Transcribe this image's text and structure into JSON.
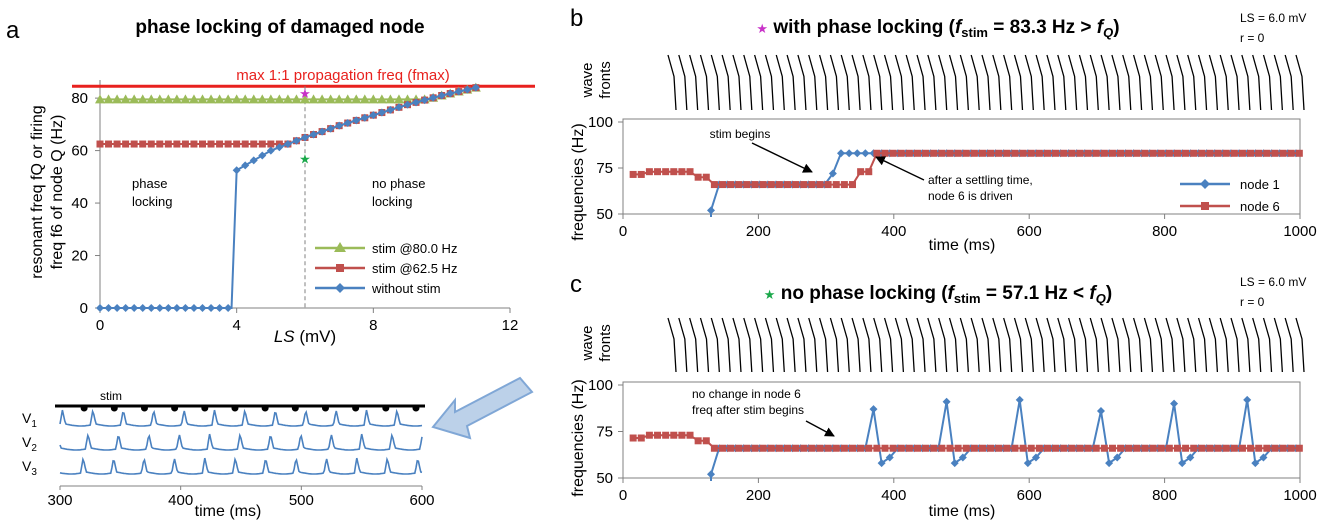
{
  "colors": {
    "blue": "#4a81c0",
    "red": "#c0504d",
    "green": "#9bbb59",
    "fmax_red": "#e8211e",
    "magenta": "#c832c8",
    "star_green": "#1aa84a",
    "arrow_fill": "#b9cfe8",
    "arrow_stroke": "#7aa3d4",
    "axis": "#808080"
  },
  "icons": {
    "magenta_star": "★",
    "green_star": "★",
    "wavefront_glyph": "\\",
    "big_arrow": "arrow-left"
  },
  "panel_a": {
    "letter": "a",
    "title": "phase locking of damaged node",
    "ylabel_line1": "resonant freq fQ or firing",
    "ylabel_line2": "freq f6 of node Q (Hz)",
    "xlabel_pre": "LS",
    "xlabel_unit": "(mV)",
    "fmax_label": "max 1:1 propagation freq (fmax)",
    "annot_phase_locking": [
      "phase",
      "locking"
    ],
    "annot_no_phase_locking": [
      "no phase",
      "locking"
    ],
    "legend": [
      "stim @80.0 Hz",
      "stim @62.5 Hz",
      "without stim"
    ]
  },
  "panel_a_inset": {
    "stim_label": "stim",
    "traces": [
      "V",
      "V",
      "V"
    ],
    "trace_subs": [
      "1",
      "2",
      "3"
    ],
    "xlabel": "time (ms)"
  },
  "panel_b": {
    "letter": "b",
    "star": "★",
    "title_prefix": "with phase locking (",
    "title_f": "f",
    "title_sub": "stim",
    "title_mid": " = 83.3 Hz > ",
    "title_fq": "f",
    "title_q": "Q",
    "title_end": ")",
    "params": [
      "LS = 6.0 mV",
      "r = 0"
    ],
    "wave_label": [
      "wave",
      "fronts"
    ],
    "ylabel": "frequencies (Hz)",
    "xlabel": "time (ms)",
    "annot_stim_begins": "stim begins",
    "annot_settle": [
      "after a settling time,",
      "node 6 is driven"
    ],
    "legend": [
      "node 1",
      "node 6"
    ]
  },
  "panel_c": {
    "letter": "c",
    "star": "★",
    "title_prefix": "no phase locking (",
    "title_f": "f",
    "title_sub": "stim",
    "title_mid": " = 57.1 Hz < ",
    "title_fq": "f",
    "title_q": "Q",
    "title_end": ")",
    "params": [
      "LS = 6.0 mV",
      "r = 0"
    ],
    "wave_label": [
      "wave",
      "fronts"
    ],
    "ylabel": "frequencies (Hz)",
    "xlabel": "time (ms)",
    "annot": [
      "no change in node 6",
      "freq after stim begins"
    ]
  },
  "chart_data": [
    {
      "id": "a",
      "type": "line",
      "title": "phase locking of damaged node",
      "xlabel": "LS (mV)",
      "ylabel": "resonant freq fQ or firing freq f6 of node Q (Hz)",
      "xlim": [
        0,
        12
      ],
      "ylim": [
        0,
        85
      ],
      "xticks": [
        0,
        4,
        8,
        12
      ],
      "yticks": [
        0,
        20,
        40,
        60,
        80
      ],
      "fmax": 84.5,
      "vline_x": 6,
      "magenta_star": [
        6,
        82
      ],
      "green_star": [
        6,
        57
      ],
      "series": [
        {
          "name": "stim @80.0 Hz",
          "color": "green",
          "marker": "triangle",
          "x_start": 0,
          "x_end": 11,
          "x_step": 0.25
        },
        {
          "name": "stim @62.5 Hz",
          "color": "red",
          "marker": "square",
          "x_start": 0,
          "x_end": 11,
          "x_step": 0.25
        },
        {
          "name": "without stim",
          "color": "blue",
          "marker": "diamond",
          "x_start": 0,
          "x_end": 11,
          "x_step": 0.25
        }
      ],
      "curve_without_stim": {
        "zero_until": 3.85,
        "jump_at": 4.0,
        "points": [
          [
            4.0,
            52.5
          ],
          [
            5.0,
            60.0
          ],
          [
            6.0,
            65.0
          ],
          [
            7.0,
            69.5
          ],
          [
            8.0,
            73.5
          ],
          [
            9.0,
            77.5
          ],
          [
            10.0,
            81.0
          ],
          [
            11.0,
            84.0
          ]
        ]
      },
      "curve_62_5_flat": 62.5,
      "curve_80_flat": 79.5
    },
    {
      "id": "a_inset",
      "type": "line",
      "xlabel": "time (ms)",
      "xlim": [
        300,
        600
      ],
      "xticks": [
        300,
        400,
        500,
        600
      ],
      "stim_times": [
        320,
        345,
        370,
        395,
        420,
        445,
        470,
        495,
        520,
        545,
        570,
        595
      ],
      "spike_period": 12.0,
      "trace_offsets": [
        0,
        4,
        8
      ]
    },
    {
      "id": "b",
      "type": "line",
      "xlabel": "time (ms)",
      "ylabel": "frequencies (Hz)",
      "xlim": [
        0,
        1000
      ],
      "ylim": [
        50,
        100
      ],
      "xticks": [
        0,
        200,
        400,
        600,
        800,
        1000
      ],
      "yticks": [
        50,
        75,
        100
      ],
      "wavefront_count": 59,
      "series": [
        {
          "name": "node 1",
          "color": "blue",
          "marker": "diamond",
          "x": [
            130,
            142,
            154,
            166,
            178,
            190,
            202,
            214,
            226,
            238,
            250,
            262,
            274,
            286,
            298,
            310,
            322,
            334,
            346,
            358,
            370,
            382,
            394,
            406,
            418,
            430,
            442,
            454,
            466,
            478,
            490,
            502,
            514,
            526,
            538,
            550,
            562,
            574,
            586,
            598,
            610,
            622,
            634,
            646,
            658,
            670,
            682,
            694,
            706,
            718,
            730,
            742,
            754,
            766,
            778,
            790,
            802,
            814,
            826,
            838,
            850,
            862,
            874,
            886,
            898,
            910,
            922,
            934,
            946,
            958,
            970,
            982,
            994
          ],
          "y_rule": "b_node1"
        },
        {
          "name": "node 6",
          "color": "red",
          "marker": "square",
          "x": [
            15,
            27,
            39,
            51,
            63,
            75,
            87,
            99,
            111,
            123,
            135,
            147,
            159,
            171,
            183,
            195,
            207,
            219,
            231,
            243,
            255,
            267,
            279,
            291,
            303,
            315,
            327,
            339,
            351,
            363,
            375,
            387,
            399,
            411,
            423,
            435,
            447,
            459,
            471,
            483,
            495,
            507,
            519,
            531,
            543,
            555,
            567,
            579,
            591,
            603,
            615,
            627,
            639,
            651,
            663,
            675,
            687,
            699,
            711,
            723,
            735,
            747,
            759,
            771,
            783,
            795,
            807,
            819,
            831,
            843,
            855,
            867,
            879,
            891,
            903,
            915,
            927,
            939,
            951,
            963,
            975,
            987,
            999
          ],
          "y_rule": "b_node6"
        }
      ]
    },
    {
      "id": "c",
      "type": "line",
      "xlabel": "time (ms)",
      "ylabel": "frequencies (Hz)",
      "xlim": [
        0,
        1000
      ],
      "ylim": [
        50,
        100
      ],
      "xticks": [
        0,
        200,
        400,
        600,
        800,
        1000
      ],
      "yticks": [
        50,
        75,
        100
      ],
      "wavefront_count": 59,
      "series": [
        {
          "name": "node 1",
          "color": "blue",
          "marker": "diamond",
          "x": [
            130,
            142,
            154,
            166,
            178,
            190,
            202,
            214,
            226,
            238,
            250,
            262,
            274,
            286,
            298,
            310,
            322,
            334,
            346,
            358,
            370,
            382,
            394,
            406,
            418,
            430,
            442,
            454,
            466,
            478,
            490,
            502,
            514,
            526,
            538,
            550,
            562,
            574,
            586,
            598,
            610,
            622,
            634,
            646,
            658,
            670,
            682,
            694,
            706,
            718,
            730,
            742,
            754,
            766,
            778,
            790,
            802,
            814,
            826,
            838,
            850,
            862,
            874,
            886,
            898,
            910,
            922,
            934,
            946,
            958,
            970,
            982,
            994
          ],
          "peaks": [
            [
              372,
              87
            ],
            [
              477,
              91
            ],
            [
              582,
              92
            ],
            [
              706,
              86
            ],
            [
              809,
              90
            ],
            [
              920,
              92
            ]
          ],
          "y_rule": "c_node1"
        },
        {
          "name": "node 6",
          "color": "red",
          "marker": "square",
          "x": [
            15,
            27,
            39,
            51,
            63,
            75,
            87,
            99,
            111,
            123,
            135,
            147,
            159,
            171,
            183,
            195,
            207,
            219,
            231,
            243,
            255,
            267,
            279,
            291,
            303,
            315,
            327,
            339,
            351,
            363,
            375,
            387,
            399,
            411,
            423,
            435,
            447,
            459,
            471,
            483,
            495,
            507,
            519,
            531,
            543,
            555,
            567,
            579,
            591,
            603,
            615,
            627,
            639,
            651,
            663,
            675,
            687,
            699,
            711,
            723,
            735,
            747,
            759,
            771,
            783,
            795,
            807,
            819,
            831,
            843,
            855,
            867,
            879,
            891,
            903,
            915,
            927,
            939,
            951,
            963,
            975,
            987,
            999
          ],
          "y_rule": "c_node6"
        }
      ]
    }
  ]
}
